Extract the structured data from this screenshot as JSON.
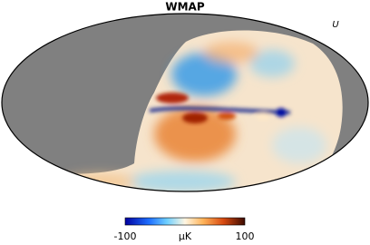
{
  "title": "WMAP",
  "stokes": "U",
  "colorbar": {
    "min": -100,
    "max": 100,
    "unit": "μK"
  }
}
